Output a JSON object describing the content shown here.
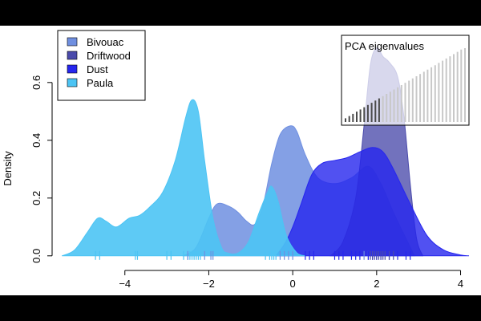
{
  "chart_data": {
    "type": "area",
    "ylabel": "Density",
    "xlabel": "",
    "xlim": [
      -5.6,
      4.2
    ],
    "ylim": [
      -0.02,
      0.78
    ],
    "x_ticks": [
      -4,
      -2,
      0,
      2,
      4
    ],
    "x_tick_labels": [
      "−4",
      "−2",
      "0",
      "2",
      "4"
    ],
    "y_ticks": [
      0.0,
      0.2,
      0.4,
      0.6
    ],
    "y_tick_labels": [
      "0.0",
      "0.2",
      "0.4",
      "0.6"
    ],
    "legend_position": "top-left",
    "series": [
      {
        "name": "Bivouac",
        "color": "#6f8fe0",
        "points": [
          [
            -2.6,
            0.0
          ],
          [
            -2.3,
            0.03
          ],
          [
            -2.0,
            0.13
          ],
          [
            -1.8,
            0.18
          ],
          [
            -1.5,
            0.17
          ],
          [
            -1.3,
            0.15
          ],
          [
            -1.1,
            0.12
          ],
          [
            -0.9,
            0.11
          ],
          [
            -0.7,
            0.18
          ],
          [
            -0.5,
            0.32
          ],
          [
            -0.3,
            0.42
          ],
          [
            -0.05,
            0.45
          ],
          [
            0.1,
            0.43
          ],
          [
            0.3,
            0.35
          ],
          [
            0.6,
            0.27
          ],
          [
            1.0,
            0.25
          ],
          [
            1.4,
            0.27
          ],
          [
            1.8,
            0.31
          ],
          [
            2.1,
            0.25
          ],
          [
            2.4,
            0.15
          ],
          [
            2.7,
            0.06
          ],
          [
            2.9,
            0.0
          ]
        ]
      },
      {
        "name": "Driftwood",
        "color": "#4a4aab",
        "points": [
          [
            0.9,
            0.0
          ],
          [
            1.2,
            0.05
          ],
          [
            1.5,
            0.2
          ],
          [
            1.7,
            0.45
          ],
          [
            1.85,
            0.66
          ],
          [
            2.0,
            0.72
          ],
          [
            2.15,
            0.69
          ],
          [
            2.3,
            0.67
          ],
          [
            2.5,
            0.62
          ],
          [
            2.65,
            0.48
          ],
          [
            2.8,
            0.25
          ],
          [
            2.95,
            0.06
          ],
          [
            3.1,
            0.0
          ]
        ]
      },
      {
        "name": "Dust",
        "color": "#2626ee",
        "points": [
          [
            -0.4,
            0.0
          ],
          [
            -0.2,
            0.04
          ],
          [
            0.0,
            0.1
          ],
          [
            0.2,
            0.18
          ],
          [
            0.45,
            0.28
          ],
          [
            0.7,
            0.32
          ],
          [
            1.0,
            0.33
          ],
          [
            1.3,
            0.34
          ],
          [
            1.6,
            0.36
          ],
          [
            1.9,
            0.375
          ],
          [
            2.15,
            0.36
          ],
          [
            2.4,
            0.3
          ],
          [
            2.8,
            0.18
          ],
          [
            3.2,
            0.07
          ],
          [
            3.6,
            0.02
          ],
          [
            4.0,
            0.003
          ],
          [
            4.2,
            0.0
          ]
        ]
      },
      {
        "name": "Paula",
        "color": "#4cc4f4",
        "points": [
          [
            -5.5,
            0.0
          ],
          [
            -5.2,
            0.02
          ],
          [
            -4.9,
            0.08
          ],
          [
            -4.65,
            0.13
          ],
          [
            -4.45,
            0.12
          ],
          [
            -4.2,
            0.1
          ],
          [
            -3.9,
            0.13
          ],
          [
            -3.65,
            0.14
          ],
          [
            -3.4,
            0.17
          ],
          [
            -3.1,
            0.22
          ],
          [
            -2.8,
            0.33
          ],
          [
            -2.55,
            0.48
          ],
          [
            -2.4,
            0.54
          ],
          [
            -2.25,
            0.5
          ],
          [
            -2.1,
            0.33
          ],
          [
            -1.9,
            0.13
          ],
          [
            -1.7,
            0.03
          ],
          [
            -1.55,
            0.01
          ],
          [
            -1.3,
            0.01
          ],
          [
            -1.05,
            0.05
          ],
          [
            -0.8,
            0.15
          ],
          [
            -0.6,
            0.22
          ],
          [
            -0.5,
            0.24
          ],
          [
            -0.35,
            0.19
          ],
          [
            -0.15,
            0.07
          ],
          [
            0.1,
            0.01
          ],
          [
            0.3,
            0.0
          ]
        ]
      }
    ],
    "rug": [
      {
        "series": "Paula",
        "color": "#4cc4f4",
        "x": [
          -4.7,
          -4.6,
          -3.75,
          -3.7,
          -3.0,
          -2.9,
          -2.6,
          -2.5,
          -2.45,
          -2.4,
          -2.35,
          -2.3,
          -2.25,
          -2.2,
          -0.65,
          -0.55,
          -0.5,
          -0.45,
          -0.4
        ]
      },
      {
        "series": "Bivouac",
        "color": "#6f8fe0",
        "x": [
          -2.5,
          -2.1,
          -1.95,
          -1.9,
          -0.3,
          -0.2,
          -0.1,
          0.0,
          1.7,
          1.8
        ]
      },
      {
        "series": "Dust",
        "color": "#2626ee",
        "x": [
          0.3,
          0.4,
          0.5,
          1.0,
          1.1,
          1.2,
          1.4,
          1.5,
          1.6,
          1.8,
          1.9,
          2.0,
          2.1,
          2.3,
          2.5,
          2.7,
          2.8
        ]
      },
      {
        "series": "Driftwood",
        "color": "#4a4aab",
        "x": [
          1.85,
          1.9,
          1.95,
          2.0,
          2.05,
          2.1,
          2.15,
          2.2,
          2.3,
          2.4
        ]
      }
    ],
    "inset": {
      "title": "PCA eigenvalues",
      "type": "bar",
      "values": [
        0.05,
        0.08,
        0.11,
        0.14,
        0.17,
        0.2,
        0.23,
        0.26,
        0.29,
        0.32,
        0.35,
        0.38,
        0.41,
        0.44,
        0.47,
        0.5,
        0.53,
        0.56,
        0.59,
        0.62,
        0.65,
        0.68,
        0.71,
        0.74,
        0.77,
        0.8,
        0.83,
        0.86,
        0.89,
        0.92,
        0.95,
        0.98,
        1.0
      ],
      "dark_count": 10,
      "dark_color": "#4a4a4a",
      "light_color": "#c8c8c8"
    }
  }
}
